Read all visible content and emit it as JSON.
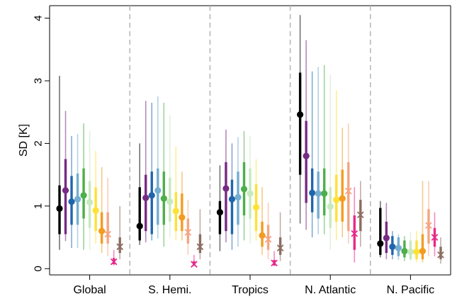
{
  "chart_data": {
    "type": "scatter",
    "title": "",
    "xlabel": "",
    "ylabel": "SD [K]",
    "ylim": [
      -0.1,
      4.2
    ],
    "yticks": [
      0,
      1,
      2,
      3,
      4
    ],
    "categories": [
      "Global",
      "S. Hemi.",
      "Tropics",
      "N. Atlantic",
      "N. Pacific"
    ],
    "grid": false,
    "legend": "none",
    "category_separator": "dashed vertical lines",
    "series": [
      {
        "color": "#000000",
        "marker": "dot",
        "mean": [
          0.96,
          0.68,
          0.9,
          2.46,
          0.4
        ],
        "inner": [
          [
            0.55,
            1.33
          ],
          [
            0.45,
            1.3
          ],
          [
            0.55,
            1.08
          ],
          [
            1.5,
            3.13
          ],
          [
            0.22,
            0.97
          ]
        ],
        "outer": [
          [
            0.3,
            3.08
          ],
          [
            0.38,
            2.0
          ],
          [
            0.28,
            1.65
          ],
          [
            0.72,
            4.05
          ],
          [
            0.18,
            1.08
          ]
        ]
      },
      {
        "color": "#762a83",
        "marker": "dot",
        "mean": [
          1.25,
          1.13,
          1.28,
          1.8,
          0.49
        ],
        "inner": [
          [
            0.55,
            1.75
          ],
          [
            0.6,
            1.5
          ],
          [
            0.6,
            1.7
          ],
          [
            1.05,
            2.36
          ],
          [
            0.25,
            0.75
          ]
        ],
        "outer": [
          [
            0.44,
            2.52
          ],
          [
            0.42,
            2.68
          ],
          [
            0.42,
            2.22
          ],
          [
            0.62,
            3.65
          ],
          [
            0.15,
            1.05
          ]
        ]
      },
      {
        "color": "#2166ac",
        "marker": "dot",
        "mean": [
          1.07,
          1.17,
          1.11,
          1.21,
          0.35
        ],
        "inner": [
          [
            0.7,
            1.48
          ],
          [
            0.55,
            1.55
          ],
          [
            0.55,
            1.42
          ],
          [
            0.9,
            1.6
          ],
          [
            0.22,
            0.52
          ]
        ],
        "outer": [
          [
            0.33,
            2.12
          ],
          [
            0.45,
            2.65
          ],
          [
            0.3,
            2.0
          ],
          [
            0.5,
            3.15
          ],
          [
            0.15,
            0.6
          ]
        ]
      },
      {
        "color": "#74add1",
        "marker": "dot",
        "mean": [
          1.11,
          1.25,
          1.14,
          1.2,
          0.33
        ],
        "inner": [
          [
            0.7,
            1.52
          ],
          [
            0.7,
            1.6
          ],
          [
            0.7,
            1.55
          ],
          [
            0.8,
            1.55
          ],
          [
            0.2,
            0.5
          ]
        ],
        "outer": [
          [
            0.33,
            2.15
          ],
          [
            0.48,
            2.75
          ],
          [
            0.35,
            2.1
          ],
          [
            0.55,
            3.22
          ],
          [
            0.14,
            0.55
          ]
        ]
      },
      {
        "color": "#4daf4a",
        "marker": "dot",
        "mean": [
          1.17,
          1.12,
          1.27,
          1.2,
          0.28
        ],
        "inner": [
          [
            0.8,
            1.6
          ],
          [
            0.7,
            1.55
          ],
          [
            0.85,
            1.7
          ],
          [
            0.85,
            1.6
          ],
          [
            0.18,
            0.45
          ]
        ],
        "outer": [
          [
            0.3,
            2.32
          ],
          [
            0.35,
            2.65
          ],
          [
            0.45,
            2.2
          ],
          [
            0.55,
            3.25
          ],
          [
            0.12,
            0.52
          ]
        ]
      },
      {
        "color": "#c7e9c0",
        "marker": "dot",
        "mean": [
          1.06,
          1.07,
          1.2,
          0.99,
          0.27
        ],
        "inner": [
          [
            0.65,
            1.4
          ],
          [
            0.75,
            1.45
          ],
          [
            0.8,
            1.6
          ],
          [
            0.65,
            1.3
          ],
          [
            0.15,
            0.45
          ]
        ],
        "outer": [
          [
            0.3,
            2.2
          ],
          [
            0.5,
            2.45
          ],
          [
            0.4,
            2.12
          ],
          [
            0.3,
            3.1
          ],
          [
            0.12,
            0.58
          ]
        ]
      },
      {
        "color": "#ffe135",
        "marker": "dot",
        "mean": [
          0.93,
          0.92,
          0.98,
          1.1,
          0.27
        ],
        "inner": [
          [
            0.6,
            1.3
          ],
          [
            0.6,
            1.22
          ],
          [
            0.6,
            1.35
          ],
          [
            0.75,
            1.5
          ],
          [
            0.15,
            0.45
          ]
        ],
        "outer": [
          [
            0.4,
            1.88
          ],
          [
            0.45,
            1.95
          ],
          [
            0.45,
            1.75
          ],
          [
            0.45,
            2.85
          ],
          [
            0.1,
            0.6
          ]
        ]
      },
      {
        "color": "#f39c1f",
        "marker": "dot",
        "mean": [
          0.6,
          0.82,
          0.53,
          1.12,
          0.28
        ],
        "inner": [
          [
            0.4,
            0.9
          ],
          [
            0.6,
            1.2
          ],
          [
            0.35,
            0.75
          ],
          [
            0.75,
            1.58
          ],
          [
            0.15,
            0.55
          ]
        ],
        "outer": [
          [
            0.25,
            1.62
          ],
          [
            0.45,
            1.55
          ],
          [
            0.22,
            1.3
          ],
          [
            0.5,
            2.25
          ],
          [
            0.1,
            1.4
          ]
        ]
      },
      {
        "color": "#f4a582",
        "marker": "cross",
        "mean": [
          0.55,
          0.58,
          0.47,
          1.24,
          0.69
        ],
        "inner": [
          [
            0.4,
            0.9
          ],
          [
            0.4,
            0.8
          ],
          [
            0.3,
            0.7
          ],
          [
            0.6,
            1.7
          ],
          [
            0.4,
            0.95
          ]
        ],
        "outer": [
          [
            0.2,
            1.45
          ],
          [
            0.22,
            1.1
          ],
          [
            0.15,
            1.05
          ],
          [
            0.4,
            2.32
          ],
          [
            0.2,
            1.4
          ]
        ]
      },
      {
        "color": "#e7298a",
        "marker": "cross",
        "mean": [
          0.11,
          0.07,
          0.09,
          0.56,
          0.5
        ],
        "inner": [
          [
            0.07,
            0.17
          ],
          [
            0.05,
            0.12
          ],
          [
            0.05,
            0.14
          ],
          [
            0.3,
            0.85
          ],
          [
            0.35,
            0.65
          ]
        ],
        "outer": [
          [
            0.05,
            0.3
          ],
          [
            0.04,
            0.22
          ],
          [
            0.04,
            0.28
          ],
          [
            0.1,
            1.3
          ],
          [
            0.2,
            0.9
          ]
        ]
      },
      {
        "color": "#8c6d62",
        "marker": "cross",
        "mean": [
          0.35,
          0.35,
          0.33,
          0.86,
          0.22
        ],
        "inner": [
          [
            0.25,
            0.5
          ],
          [
            0.25,
            0.55
          ],
          [
            0.22,
            0.5
          ],
          [
            0.6,
            1.1
          ],
          [
            0.15,
            0.35
          ]
        ],
        "outer": [
          [
            0.15,
            1.0
          ],
          [
            0.15,
            0.95
          ],
          [
            0.12,
            0.9
          ],
          [
            0.35,
            1.4
          ],
          [
            0.08,
            0.5
          ]
        ]
      }
    ]
  }
}
